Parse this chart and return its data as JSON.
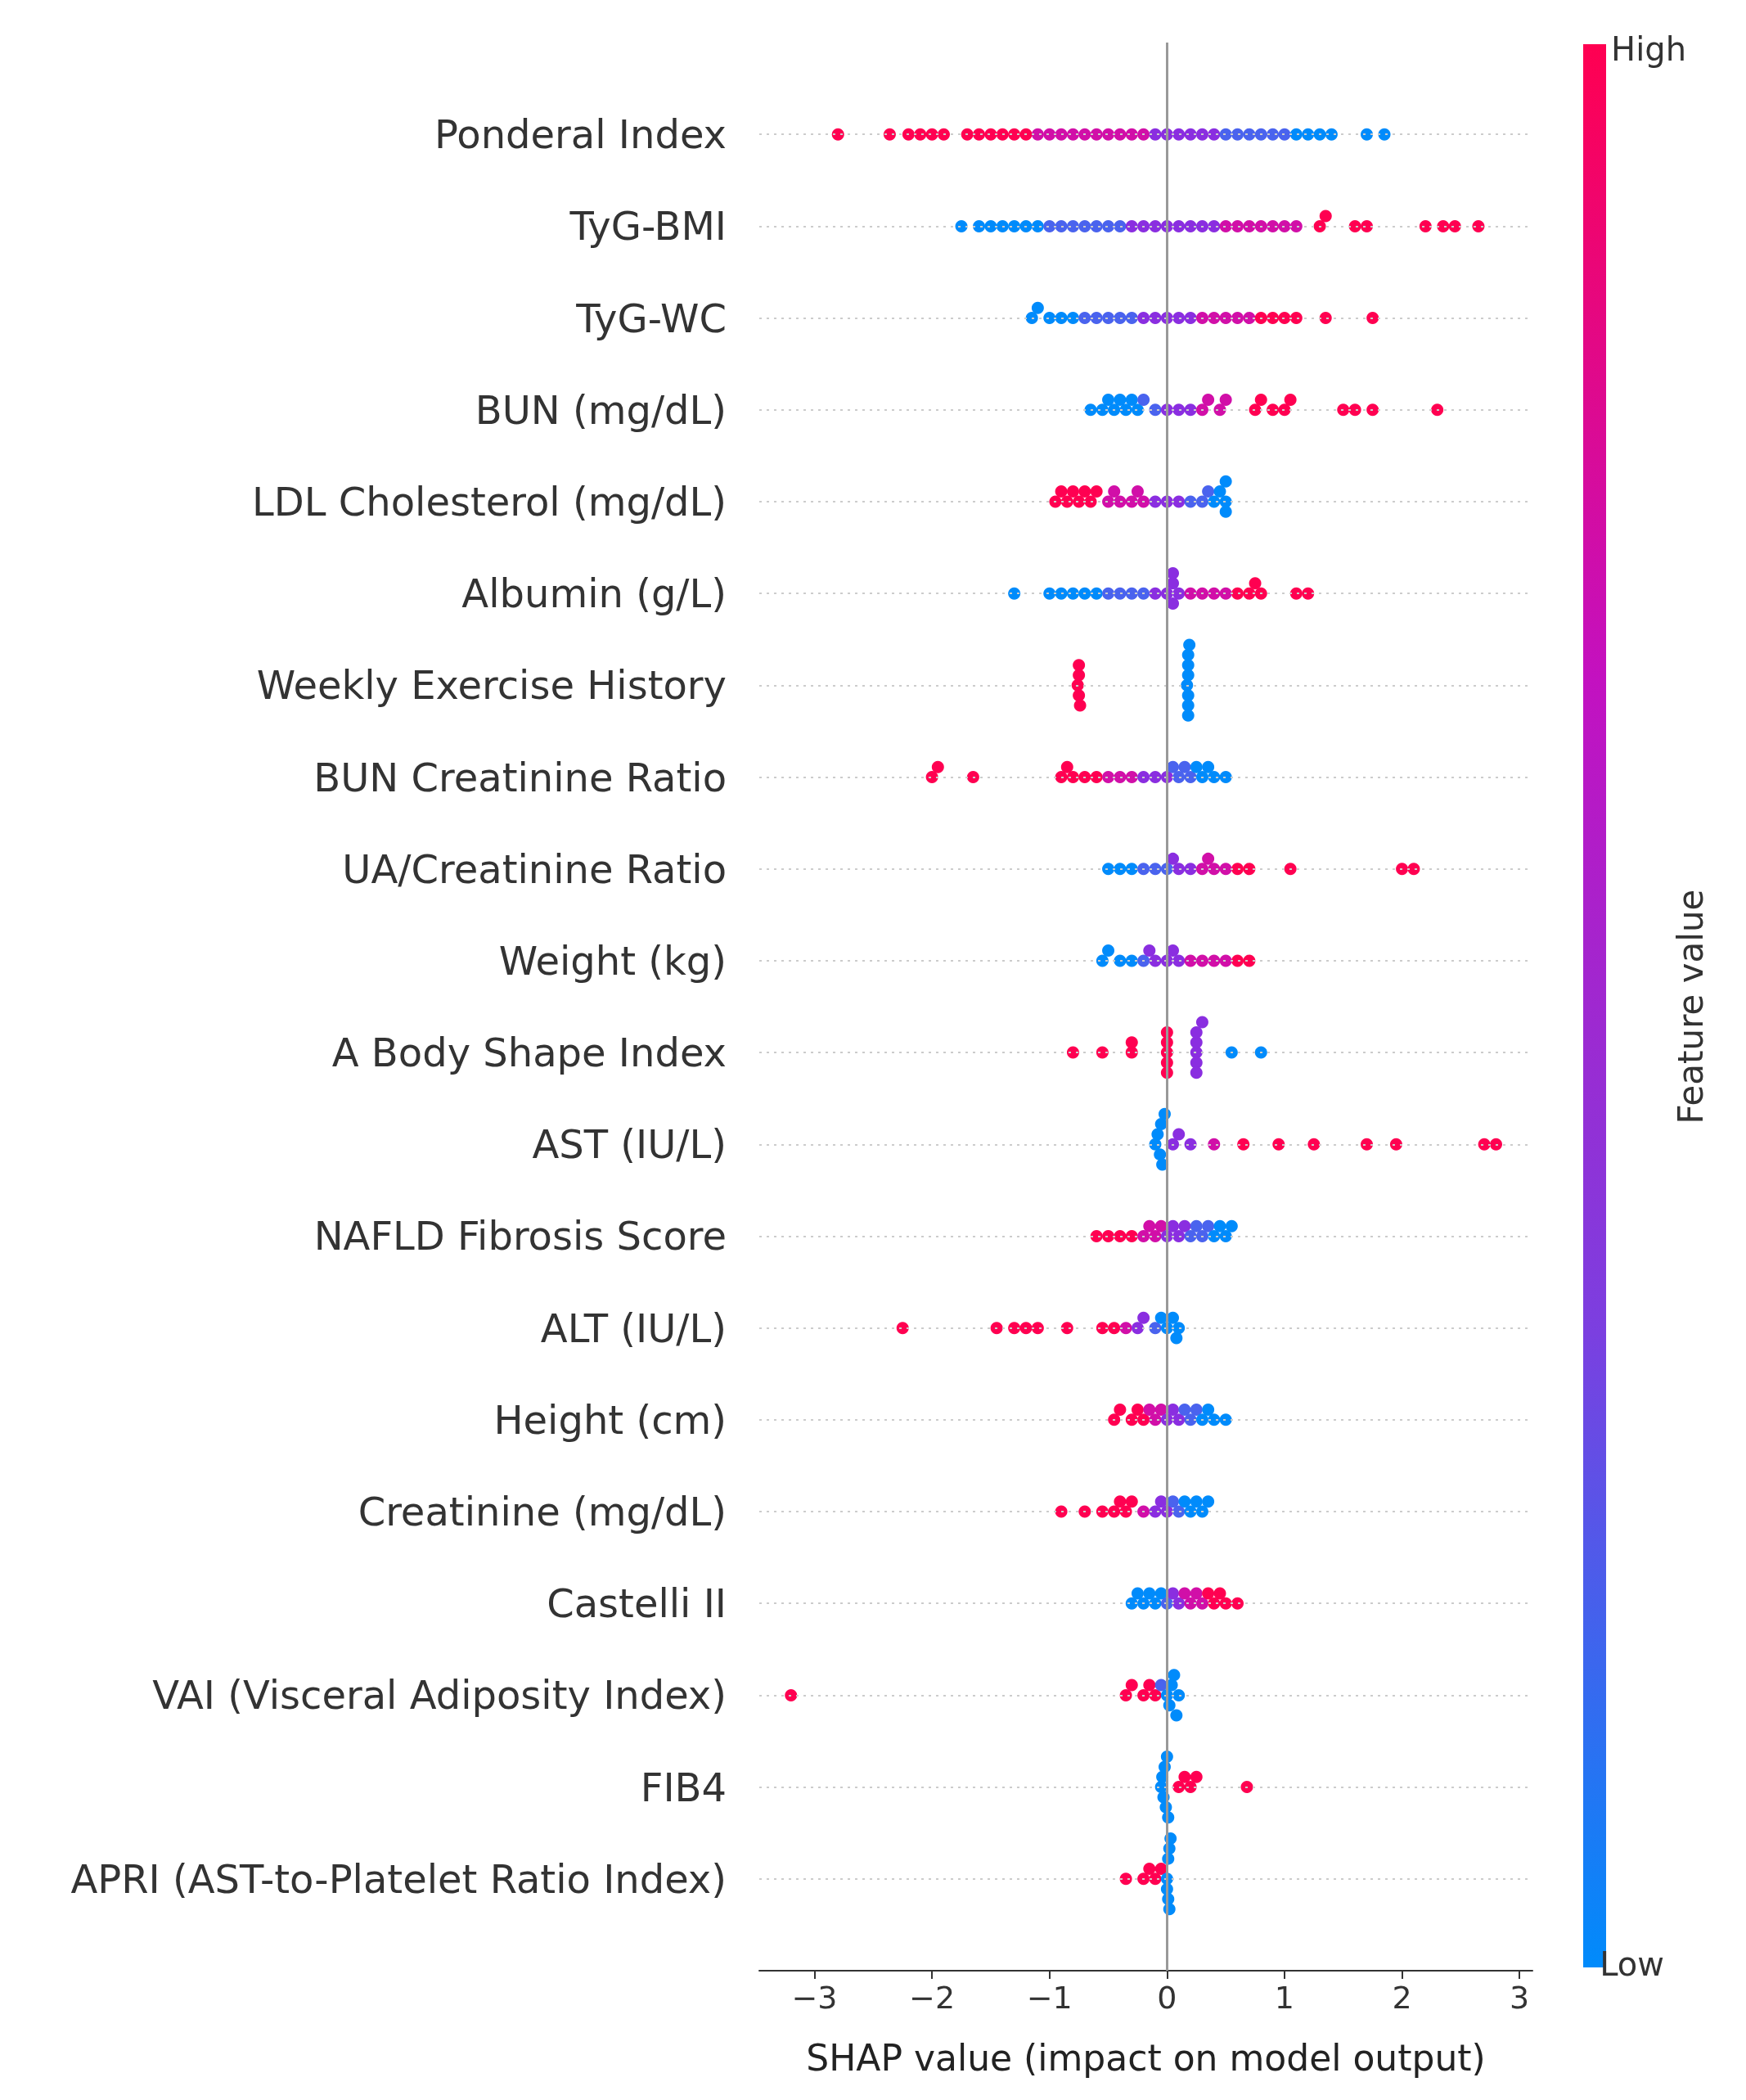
{
  "chart_data": {
    "type": "scatter",
    "orientation": "horizontal",
    "xlabel": "SHAP value (impact on model output)",
    "clabel": "Feature value",
    "annotations": [
      "High",
      "Low"
    ],
    "categories": [
      "Ponderal Index",
      "TyG-BMI",
      "TyG-WC",
      "BUN (mg/dL)",
      "LDL Cholesterol (mg/dL)",
      "Albumin (g/L)",
      "Weekly Exercise History",
      "BUN Creatinine Ratio",
      "UA/Creatinine Ratio",
      "Weight (kg)",
      "A Body Shape Index",
      "AST (IU/L)",
      "NAFLD Fibrosis Score",
      "ALT (IU/L)",
      "Height (cm)",
      "Creatinine (mg/dL)",
      "Castelli II",
      "VAI (Visceral Adiposity Index)",
      "FIB4",
      "APRI (AST-to-Platelet Ratio Index)"
    ],
    "xlim": [
      -3.47,
      3.11
    ],
    "xticks": [
      {
        "value": -3,
        "label": "−3"
      },
      {
        "value": -2,
        "label": "−2"
      },
      {
        "value": -1,
        "label": "−1"
      },
      0,
      1,
      2,
      3
    ],
    "grid": "y",
    "marker": "circle",
    "ref_lines": [
      {
        "axis": "x",
        "value": 0,
        "color": "#999999"
      }
    ],
    "series": [
      {
        "x": [
          "Ponderal Index",
          "Ponderal Index",
          "Ponderal Index",
          "Ponderal Index",
          "Ponderal Index",
          "Ponderal Index",
          "Ponderal Index",
          "Ponderal Index",
          "Ponderal Index",
          "Ponderal Index",
          "Ponderal Index",
          "Ponderal Index",
          "Ponderal Index",
          "Ponderal Index",
          "Ponderal Index",
          "Ponderal Index",
          "Ponderal Index",
          "Ponderal Index",
          "Ponderal Index",
          "Ponderal Index",
          "Ponderal Index",
          "Ponderal Index",
          "Ponderal Index",
          "Ponderal Index",
          "Ponderal Index",
          "Ponderal Index",
          "Ponderal Index",
          "Ponderal Index",
          "Ponderal Index",
          "Ponderal Index",
          "Ponderal Index",
          "Ponderal Index",
          "Ponderal Index",
          "Ponderal Index",
          "Ponderal Index",
          "Ponderal Index",
          "Ponderal Index",
          "Ponderal Index",
          "Ponderal Index",
          "Ponderal Index"
        ],
        "values": [
          -2.8,
          -2.36,
          -2.2,
          -2.1,
          -2.0,
          -1.9,
          -1.7,
          -1.6,
          -1.5,
          -1.4,
          -1.3,
          -1.2,
          -1.1,
          -1.0,
          -0.9,
          -0.8,
          -0.7,
          -0.6,
          -0.5,
          -0.4,
          -0.3,
          -0.2,
          -0.1,
          0,
          0.1,
          0.2,
          0.3,
          0.4,
          0.5,
          0.6,
          0.7,
          0.8,
          0.9,
          1.0,
          1.1,
          1.2,
          1.3,
          1.4,
          1.7,
          1.85
        ],
        "colors": [
          "#ff0051",
          "#ff0051",
          "#ff0051",
          "#ff0051",
          "#ff0051",
          "#ff0051",
          "#ff0051",
          "#ff0051",
          "#ff0051",
          "#ff0051",
          "#ff0051",
          "#ff0051",
          "#d10fa8",
          "#d10fa8",
          "#d10fa8",
          "#d10fa8",
          "#d10fa8",
          "#d10fa8",
          "#d10fa8",
          "#d10fa8",
          "#d10fa8",
          "#d10fa8",
          "#8a2ee0",
          "#8a2ee0",
          "#8a2ee0",
          "#8a2ee0",
          "#8a2ee0",
          "#8a2ee0",
          "#4a63ee",
          "#4a63ee",
          "#4a63ee",
          "#4a63ee",
          "#4a63ee",
          "#4a63ee",
          "#008bfb",
          "#008bfb",
          "#008bfb",
          "#008bfb",
          "#008bfb",
          "#008bfb"
        ]
      },
      {
        "x": [
          "TyG-BMI",
          "TyG-BMI",
          "TyG-BMI",
          "TyG-BMI",
          "TyG-BMI",
          "TyG-BMI",
          "TyG-BMI",
          "TyG-BMI",
          "TyG-BMI",
          "TyG-BMI",
          "TyG-BMI",
          "TyG-BMI",
          "TyG-BMI",
          "TyG-BMI",
          "TyG-BMI",
          "TyG-BMI",
          "TyG-BMI",
          "TyG-BMI",
          "TyG-BMI",
          "TyG-BMI",
          "TyG-BMI",
          "TyG-BMI",
          "TyG-BMI",
          "TyG-BMI",
          "TyG-BMI",
          "TyG-BMI",
          "TyG-BMI",
          "TyG-BMI",
          "TyG-BMI",
          "TyG-BMI",
          "TyG-BMI",
          "TyG-BMI",
          "TyG-BMI",
          "TyG-BMI",
          "TyG-BMI",
          "TyG-BMI",
          "TyG-BMI"
        ],
        "values": [
          -1.75,
          -1.6,
          -1.5,
          -1.4,
          -1.3,
          -1.2,
          -1.1,
          -1.0,
          -0.9,
          -0.8,
          -0.7,
          -0.6,
          -0.5,
          -0.4,
          -0.3,
          -0.2,
          -0.1,
          0,
          0.1,
          0.2,
          0.3,
          0.4,
          0.5,
          0.6,
          0.7,
          0.8,
          0.9,
          1.0,
          1.1,
          1.3,
          1.35,
          1.6,
          1.7,
          2.2,
          2.35,
          2.45,
          2.65
        ],
        "colors": [
          "#008bfb",
          "#008bfb",
          "#008bfb",
          "#008bfb",
          "#008bfb",
          "#008bfb",
          "#008bfb",
          "#4a63ee",
          "#4a63ee",
          "#4a63ee",
          "#4a63ee",
          "#4a63ee",
          "#4a63ee",
          "#4a63ee",
          "#8a2ee0",
          "#8a2ee0",
          "#8a2ee0",
          "#8a2ee0",
          "#8a2ee0",
          "#8a2ee0",
          "#8a2ee0",
          "#8a2ee0",
          "#d10fa8",
          "#d10fa8",
          "#d10fa8",
          "#d10fa8",
          "#d10fa8",
          "#d10fa8",
          "#d10fa8",
          "#ff0051",
          "#ff0051",
          "#ff0051",
          "#ff0051",
          "#ff0051",
          "#ff0051",
          "#ff0051",
          "#ff0051"
        ]
      },
      {
        "x": [
          "TyG-WC",
          "TyG-WC",
          "TyG-WC",
          "TyG-WC",
          "TyG-WC",
          "TyG-WC",
          "TyG-WC",
          "TyG-WC",
          "TyG-WC",
          "TyG-WC",
          "TyG-WC",
          "TyG-WC",
          "TyG-WC",
          "TyG-WC",
          "TyG-WC",
          "TyG-WC",
          "TyG-WC",
          "TyG-WC",
          "TyG-WC",
          "TyG-WC",
          "TyG-WC",
          "TyG-WC",
          "TyG-WC",
          "TyG-WC",
          "TyG-WC",
          "TyG-WC"
        ],
        "values": [
          -1.15,
          -1.1,
          -1.0,
          -0.9,
          -0.8,
          -0.7,
          -0.6,
          -0.5,
          -0.4,
          -0.3,
          -0.2,
          -0.1,
          0,
          0.1,
          0.2,
          0.3,
          0.4,
          0.5,
          0.6,
          0.7,
          0.8,
          0.9,
          1.0,
          1.1,
          1.35,
          1.75
        ],
        "colors": [
          "#008bfb",
          "#008bfb",
          "#008bfb",
          "#008bfb",
          "#008bfb",
          "#4a63ee",
          "#4a63ee",
          "#4a63ee",
          "#4a63ee",
          "#4a63ee",
          "#8a2ee0",
          "#8a2ee0",
          "#8a2ee0",
          "#8a2ee0",
          "#8a2ee0",
          "#d10fa8",
          "#d10fa8",
          "#d10fa8",
          "#d10fa8",
          "#d10fa8",
          "#ff0051",
          "#ff0051",
          "#ff0051",
          "#ff0051",
          "#ff0051",
          "#ff0051"
        ]
      },
      {
        "x": [
          "BUN (mg/dL)",
          "BUN (mg/dL)",
          "BUN (mg/dL)",
          "BUN (mg/dL)",
          "BUN (mg/dL)",
          "BUN (mg/dL)",
          "BUN (mg/dL)",
          "BUN (mg/dL)",
          "BUN (mg/dL)",
          "BUN (mg/dL)",
          "BUN (mg/dL)",
          "BUN (mg/dL)",
          "BUN (mg/dL)",
          "BUN (mg/dL)",
          "BUN (mg/dL)",
          "BUN (mg/dL)",
          "BUN (mg/dL)",
          "BUN (mg/dL)",
          "BUN (mg/dL)",
          "BUN (mg/dL)",
          "BUN (mg/dL)",
          "BUN (mg/dL)",
          "BUN (mg/dL)",
          "BUN (mg/dL)",
          "BUN (mg/dL)",
          "BUN (mg/dL)"
        ],
        "values": [
          -0.65,
          -0.55,
          -0.5,
          -0.45,
          -0.4,
          -0.35,
          -0.3,
          -0.25,
          -0.2,
          -0.1,
          0,
          0.1,
          0.2,
          0.3,
          0.35,
          0.45,
          0.5,
          0.75,
          0.8,
          0.9,
          1.0,
          1.05,
          1.5,
          1.6,
          1.75,
          2.3
        ],
        "colors": [
          "#008bfb",
          "#008bfb",
          "#008bfb",
          "#008bfb",
          "#008bfb",
          "#008bfb",
          "#008bfb",
          "#008bfb",
          "#4a63ee",
          "#4a63ee",
          "#8a2ee0",
          "#8a2ee0",
          "#8a2ee0",
          "#d10fa8",
          "#d10fa8",
          "#d10fa8",
          "#d10fa8",
          "#ff0051",
          "#ff0051",
          "#ff0051",
          "#ff0051",
          "#ff0051",
          "#ff0051",
          "#ff0051",
          "#ff0051",
          "#ff0051"
        ]
      },
      {
        "x": [
          "LDL Cholesterol (mg/dL)",
          "LDL Cholesterol (mg/dL)",
          "LDL Cholesterol (mg/dL)",
          "LDL Cholesterol (mg/dL)",
          "LDL Cholesterol (mg/dL)",
          "LDL Cholesterol (mg/dL)",
          "LDL Cholesterol (mg/dL)",
          "LDL Cholesterol (mg/dL)",
          "LDL Cholesterol (mg/dL)",
          "LDL Cholesterol (mg/dL)",
          "LDL Cholesterol (mg/dL)",
          "LDL Cholesterol (mg/dL)",
          "LDL Cholesterol (mg/dL)",
          "LDL Cholesterol (mg/dL)",
          "LDL Cholesterol (mg/dL)",
          "LDL Cholesterol (mg/dL)",
          "LDL Cholesterol (mg/dL)",
          "LDL Cholesterol (mg/dL)",
          "LDL Cholesterol (mg/dL)",
          "LDL Cholesterol (mg/dL)",
          "LDL Cholesterol (mg/dL)",
          "LDL Cholesterol (mg/dL)",
          "LDL Cholesterol (mg/dL)",
          "LDL Cholesterol (mg/dL)",
          "LDL Cholesterol (mg/dL)"
        ],
        "values": [
          -0.95,
          -0.9,
          -0.85,
          -0.8,
          -0.75,
          -0.7,
          -0.65,
          -0.6,
          -0.5,
          -0.45,
          -0.4,
          -0.3,
          -0.25,
          -0.2,
          -0.1,
          0,
          0.1,
          0.2,
          0.3,
          0.35,
          0.4,
          0.45,
          0.5,
          0.5,
          0.5
        ],
        "colors": [
          "#ff0051",
          "#ff0051",
          "#ff0051",
          "#ff0051",
          "#ff0051",
          "#ff0051",
          "#ff0051",
          "#ff0051",
          "#d10fa8",
          "#d10fa8",
          "#d10fa8",
          "#d10fa8",
          "#d10fa8",
          "#d10fa8",
          "#8a2ee0",
          "#8a2ee0",
          "#8a2ee0",
          "#4a63ee",
          "#4a63ee",
          "#4a63ee",
          "#008bfb",
          "#008bfb",
          "#008bfb",
          "#008bfb",
          "#008bfb"
        ]
      },
      {
        "x": [
          "Albumin (g/L)",
          "Albumin (g/L)",
          "Albumin (g/L)",
          "Albumin (g/L)",
          "Albumin (g/L)",
          "Albumin (g/L)",
          "Albumin (g/L)",
          "Albumin (g/L)",
          "Albumin (g/L)",
          "Albumin (g/L)",
          "Albumin (g/L)",
          "Albumin (g/L)",
          "Albumin (g/L)",
          "Albumin (g/L)",
          "Albumin (g/L)",
          "Albumin (g/L)",
          "Albumin (g/L)",
          "Albumin (g/L)",
          "Albumin (g/L)",
          "Albumin (g/L)",
          "Albumin (g/L)",
          "Albumin (g/L)",
          "Albumin (g/L)",
          "Albumin (g/L)",
          "Albumin (g/L)",
          "Albumin (g/L)"
        ],
        "values": [
          -1.3,
          -1.0,
          -0.9,
          -0.8,
          -0.7,
          -0.6,
          -0.5,
          -0.4,
          -0.3,
          -0.2,
          -0.1,
          0,
          0.05,
          0.05,
          0.05,
          0.1,
          0.2,
          0.3,
          0.4,
          0.5,
          0.6,
          0.7,
          0.75,
          0.8,
          1.1,
          1.2
        ],
        "colors": [
          "#008bfb",
          "#008bfb",
          "#008bfb",
          "#008bfb",
          "#008bfb",
          "#008bfb",
          "#4a63ee",
          "#4a63ee",
          "#4a63ee",
          "#4a63ee",
          "#8a2ee0",
          "#8a2ee0",
          "#8a2ee0",
          "#8a2ee0",
          "#8a2ee0",
          "#8a2ee0",
          "#d10fa8",
          "#d10fa8",
          "#d10fa8",
          "#d10fa8",
          "#ff0051",
          "#ff0051",
          "#ff0051",
          "#ff0051",
          "#ff0051",
          "#ff0051"
        ]
      },
      {
        "x": [
          "Weekly Exercise History",
          "Weekly Exercise History",
          "Weekly Exercise History",
          "Weekly Exercise History",
          "Weekly Exercise History",
          "Weekly Exercise History",
          "Weekly Exercise History",
          "Weekly Exercise History",
          "Weekly Exercise History",
          "Weekly Exercise History",
          "Weekly Exercise History",
          "Weekly Exercise History",
          "Weekly Exercise History"
        ],
        "values": [
          -0.76,
          -0.75,
          -0.75,
          -0.75,
          -0.74,
          0.17,
          0.18,
          0.18,
          0.18,
          0.18,
          0.18,
          0.18,
          0.19
        ],
        "colors": [
          "#ff0051",
          "#ff0051",
          "#ff0051",
          "#ff0051",
          "#ff0051",
          "#008bfb",
          "#008bfb",
          "#008bfb",
          "#008bfb",
          "#008bfb",
          "#008bfb",
          "#008bfb",
          "#008bfb"
        ]
      },
      {
        "x": [
          "BUN Creatinine Ratio",
          "BUN Creatinine Ratio",
          "BUN Creatinine Ratio",
          "BUN Creatinine Ratio",
          "BUN Creatinine Ratio",
          "BUN Creatinine Ratio",
          "BUN Creatinine Ratio",
          "BUN Creatinine Ratio",
          "BUN Creatinine Ratio",
          "BUN Creatinine Ratio",
          "BUN Creatinine Ratio",
          "BUN Creatinine Ratio",
          "BUN Creatinine Ratio",
          "BUN Creatinine Ratio",
          "BUN Creatinine Ratio",
          "BUN Creatinine Ratio",
          "BUN Creatinine Ratio",
          "BUN Creatinine Ratio",
          "BUN Creatinine Ratio",
          "BUN Creatinine Ratio",
          "BUN Creatinine Ratio",
          "BUN Creatinine Ratio",
          "BUN Creatinine Ratio"
        ],
        "values": [
          -2.0,
          -1.95,
          -1.65,
          -0.9,
          -0.85,
          -0.8,
          -0.7,
          -0.6,
          -0.5,
          -0.4,
          -0.3,
          -0.2,
          -0.1,
          0,
          0.05,
          0.1,
          0.15,
          0.2,
          0.25,
          0.3,
          0.35,
          0.4,
          0.5
        ],
        "colors": [
          "#ff0051",
          "#ff0051",
          "#ff0051",
          "#ff0051",
          "#ff0051",
          "#ff0051",
          "#ff0051",
          "#ff0051",
          "#d10fa8",
          "#d10fa8",
          "#d10fa8",
          "#8a2ee0",
          "#8a2ee0",
          "#8a2ee0",
          "#4a63ee",
          "#4a63ee",
          "#4a63ee",
          "#4a63ee",
          "#008bfb",
          "#008bfb",
          "#008bfb",
          "#008bfb",
          "#008bfb"
        ]
      },
      {
        "x": [
          "UA/Creatinine Ratio",
          "UA/Creatinine Ratio",
          "UA/Creatinine Ratio",
          "UA/Creatinine Ratio",
          "UA/Creatinine Ratio",
          "UA/Creatinine Ratio",
          "UA/Creatinine Ratio",
          "UA/Creatinine Ratio",
          "UA/Creatinine Ratio",
          "UA/Creatinine Ratio",
          "UA/Creatinine Ratio",
          "UA/Creatinine Ratio",
          "UA/Creatinine Ratio",
          "UA/Creatinine Ratio",
          "UA/Creatinine Ratio",
          "UA/Creatinine Ratio",
          "UA/Creatinine Ratio",
          "UA/Creatinine Ratio"
        ],
        "values": [
          -0.5,
          -0.4,
          -0.3,
          -0.2,
          -0.1,
          0,
          0.05,
          0.1,
          0.2,
          0.3,
          0.35,
          0.4,
          0.5,
          0.6,
          0.7,
          1.05,
          2.0,
          2.1
        ],
        "colors": [
          "#008bfb",
          "#008bfb",
          "#008bfb",
          "#4a63ee",
          "#4a63ee",
          "#4a63ee",
          "#8a2ee0",
          "#8a2ee0",
          "#8a2ee0",
          "#d10fa8",
          "#d10fa8",
          "#d10fa8",
          "#d10fa8",
          "#ff0051",
          "#ff0051",
          "#ff0051",
          "#ff0051",
          "#ff0051"
        ]
      },
      {
        "x": [
          "Weight (kg)",
          "Weight (kg)",
          "Weight (kg)",
          "Weight (kg)",
          "Weight (kg)",
          "Weight (kg)",
          "Weight (kg)",
          "Weight (kg)",
          "Weight (kg)",
          "Weight (kg)",
          "Weight (kg)",
          "Weight (kg)",
          "Weight (kg)",
          "Weight (kg)",
          "Weight (kg)",
          "Weight (kg)"
        ],
        "values": [
          -0.55,
          -0.5,
          -0.4,
          -0.3,
          -0.2,
          -0.15,
          -0.1,
          0,
          0.05,
          0.1,
          0.2,
          0.3,
          0.4,
          0.5,
          0.6,
          0.7
        ],
        "colors": [
          "#008bfb",
          "#008bfb",
          "#008bfb",
          "#008bfb",
          "#4a63ee",
          "#8a2ee0",
          "#8a2ee0",
          "#8a2ee0",
          "#8a2ee0",
          "#8a2ee0",
          "#d10fa8",
          "#d10fa8",
          "#d10fa8",
          "#d10fa8",
          "#ff0051",
          "#ff0051"
        ]
      },
      {
        "x": [
          "A Body Shape Index",
          "A Body Shape Index",
          "A Body Shape Index",
          "A Body Shape Index",
          "A Body Shape Index",
          "A Body Shape Index",
          "A Body Shape Index",
          "A Body Shape Index",
          "A Body Shape Index",
          "A Body Shape Index",
          "A Body Shape Index",
          "A Body Shape Index",
          "A Body Shape Index",
          "A Body Shape Index",
          "A Body Shape Index",
          "A Body Shape Index",
          "A Body Shape Index"
        ],
        "values": [
          -0.8,
          -0.55,
          -0.3,
          -0.3,
          0,
          0,
          0,
          0,
          0,
          0.25,
          0.25,
          0.25,
          0.25,
          0.25,
          0.3,
          0.55,
          0.8
        ],
        "colors": [
          "#ff0051",
          "#ff0051",
          "#ff0051",
          "#ff0051",
          "#ff0051",
          "#ff0051",
          "#ff0051",
          "#ff0051",
          "#ff0051",
          "#8a2ee0",
          "#8a2ee0",
          "#8a2ee0",
          "#8a2ee0",
          "#8a2ee0",
          "#8a2ee0",
          "#008bfb",
          "#008bfb"
        ]
      },
      {
        "x": [
          "AST (IU/L)",
          "AST (IU/L)",
          "AST (IU/L)",
          "AST (IU/L)",
          "AST (IU/L)",
          "AST (IU/L)",
          "AST (IU/L)",
          "AST (IU/L)",
          "AST (IU/L)",
          "AST (IU/L)",
          "AST (IU/L)",
          "AST (IU/L)",
          "AST (IU/L)",
          "AST (IU/L)",
          "AST (IU/L)",
          "AST (IU/L)",
          "AST (IU/L)"
        ],
        "values": [
          -0.1,
          -0.08,
          -0.06,
          -0.05,
          -0.04,
          -0.02,
          0.05,
          0.1,
          0.2,
          0.4,
          0.65,
          0.95,
          1.25,
          1.7,
          1.95,
          2.7,
          2.8
        ],
        "colors": [
          "#008bfb",
          "#008bfb",
          "#008bfb",
          "#008bfb",
          "#008bfb",
          "#008bfb",
          "#8a2ee0",
          "#8a2ee0",
          "#8a2ee0",
          "#d10fa8",
          "#ff0051",
          "#ff0051",
          "#ff0051",
          "#ff0051",
          "#ff0051",
          "#ff0051",
          "#ff0051"
        ]
      },
      {
        "x": [
          "NAFLD Fibrosis Score",
          "NAFLD Fibrosis Score",
          "NAFLD Fibrosis Score",
          "NAFLD Fibrosis Score",
          "NAFLD Fibrosis Score",
          "NAFLD Fibrosis Score",
          "NAFLD Fibrosis Score",
          "NAFLD Fibrosis Score",
          "NAFLD Fibrosis Score",
          "NAFLD Fibrosis Score",
          "NAFLD Fibrosis Score",
          "NAFLD Fibrosis Score",
          "NAFLD Fibrosis Score",
          "NAFLD Fibrosis Score",
          "NAFLD Fibrosis Score",
          "NAFLD Fibrosis Score",
          "NAFLD Fibrosis Score",
          "NAFLD Fibrosis Score",
          "NAFLD Fibrosis Score",
          "NAFLD Fibrosis Score"
        ],
        "values": [
          -0.6,
          -0.5,
          -0.4,
          -0.3,
          -0.2,
          -0.15,
          -0.1,
          -0.05,
          0,
          0.05,
          0.1,
          0.15,
          0.2,
          0.25,
          0.3,
          0.35,
          0.4,
          0.45,
          0.5,
          0.55
        ],
        "colors": [
          "#ff0051",
          "#ff0051",
          "#ff0051",
          "#ff0051",
          "#d10fa8",
          "#d10fa8",
          "#d10fa8",
          "#d10fa8",
          "#8a2ee0",
          "#8a2ee0",
          "#8a2ee0",
          "#8a2ee0",
          "#4a63ee",
          "#4a63ee",
          "#4a63ee",
          "#4a63ee",
          "#008bfb",
          "#008bfb",
          "#008bfb",
          "#008bfb"
        ]
      },
      {
        "x": [
          "ALT (IU/L)",
          "ALT (IU/L)",
          "ALT (IU/L)",
          "ALT (IU/L)",
          "ALT (IU/L)",
          "ALT (IU/L)",
          "ALT (IU/L)",
          "ALT (IU/L)",
          "ALT (IU/L)",
          "ALT (IU/L)",
          "ALT (IU/L)",
          "ALT (IU/L)",
          "ALT (IU/L)",
          "ALT (IU/L)",
          "ALT (IU/L)",
          "ALT (IU/L)",
          "ALT (IU/L)"
        ],
        "values": [
          -2.25,
          -1.45,
          -1.3,
          -1.2,
          -1.1,
          -0.85,
          -0.55,
          -0.45,
          -0.35,
          -0.25,
          -0.2,
          -0.1,
          -0.05,
          0,
          0.05,
          0.08,
          0.1
        ],
        "colors": [
          "#ff0051",
          "#ff0051",
          "#ff0051",
          "#ff0051",
          "#ff0051",
          "#ff0051",
          "#ff0051",
          "#ff0051",
          "#d10fa8",
          "#8a2ee0",
          "#8a2ee0",
          "#4a63ee",
          "#008bfb",
          "#008bfb",
          "#008bfb",
          "#008bfb",
          "#008bfb"
        ]
      },
      {
        "x": [
          "Height (cm)",
          "Height (cm)",
          "Height (cm)",
          "Height (cm)",
          "Height (cm)",
          "Height (cm)",
          "Height (cm)",
          "Height (cm)",
          "Height (cm)",
          "Height (cm)",
          "Height (cm)",
          "Height (cm)",
          "Height (cm)",
          "Height (cm)",
          "Height (cm)",
          "Height (cm)",
          "Height (cm)",
          "Height (cm)"
        ],
        "values": [
          -0.45,
          -0.4,
          -0.3,
          -0.25,
          -0.2,
          -0.15,
          -0.1,
          -0.05,
          0,
          0.05,
          0.1,
          0.15,
          0.2,
          0.25,
          0.3,
          0.35,
          0.4,
          0.5
        ],
        "colors": [
          "#ff0051",
          "#ff0051",
          "#ff0051",
          "#ff0051",
          "#ff0051",
          "#d10fa8",
          "#d10fa8",
          "#d10fa8",
          "#8a2ee0",
          "#8a2ee0",
          "#8a2ee0",
          "#4a63ee",
          "#4a63ee",
          "#4a63ee",
          "#008bfb",
          "#008bfb",
          "#008bfb",
          "#008bfb"
        ]
      },
      {
        "x": [
          "Creatinine (mg/dL)",
          "Creatinine (mg/dL)",
          "Creatinine (mg/dL)",
          "Creatinine (mg/dL)",
          "Creatinine (mg/dL)",
          "Creatinine (mg/dL)",
          "Creatinine (mg/dL)",
          "Creatinine (mg/dL)",
          "Creatinine (mg/dL)",
          "Creatinine (mg/dL)",
          "Creatinine (mg/dL)",
          "Creatinine (mg/dL)",
          "Creatinine (mg/dL)",
          "Creatinine (mg/dL)",
          "Creatinine (mg/dL)",
          "Creatinine (mg/dL)",
          "Creatinine (mg/dL)",
          "Creatinine (mg/dL)"
        ],
        "values": [
          -0.9,
          -0.7,
          -0.55,
          -0.45,
          -0.4,
          -0.35,
          -0.3,
          -0.2,
          -0.1,
          -0.05,
          0,
          0.05,
          0.1,
          0.15,
          0.2,
          0.25,
          0.3,
          0.35
        ],
        "colors": [
          "#ff0051",
          "#ff0051",
          "#ff0051",
          "#ff0051",
          "#ff0051",
          "#ff0051",
          "#ff0051",
          "#d10fa8",
          "#8a2ee0",
          "#8a2ee0",
          "#8a2ee0",
          "#4a63ee",
          "#4a63ee",
          "#008bfb",
          "#008bfb",
          "#008bfb",
          "#008bfb",
          "#008bfb"
        ]
      },
      {
        "x": [
          "Castelli II",
          "Castelli II",
          "Castelli II",
          "Castelli II",
          "Castelli II",
          "Castelli II",
          "Castelli II",
          "Castelli II",
          "Castelli II",
          "Castelli II",
          "Castelli II",
          "Castelli II",
          "Castelli II",
          "Castelli II",
          "Castelli II",
          "Castelli II",
          "Castelli II",
          "Castelli II"
        ],
        "values": [
          -0.3,
          -0.25,
          -0.2,
          -0.15,
          -0.1,
          -0.05,
          0,
          0.05,
          0.1,
          0.15,
          0.2,
          0.25,
          0.3,
          0.35,
          0.4,
          0.45,
          0.5,
          0.6
        ],
        "colors": [
          "#008bfb",
          "#008bfb",
          "#008bfb",
          "#008bfb",
          "#008bfb",
          "#008bfb",
          "#4a63ee",
          "#8a2ee0",
          "#8a2ee0",
          "#d10fa8",
          "#d10fa8",
          "#d10fa8",
          "#d10fa8",
          "#ff0051",
          "#ff0051",
          "#ff0051",
          "#ff0051",
          "#ff0051"
        ]
      },
      {
        "x": [
          "VAI (Visceral Adiposity Index)",
          "VAI (Visceral Adiposity Index)",
          "VAI (Visceral Adiposity Index)",
          "VAI (Visceral Adiposity Index)",
          "VAI (Visceral Adiposity Index)",
          "VAI (Visceral Adiposity Index)",
          "VAI (Visceral Adiposity Index)",
          "VAI (Visceral Adiposity Index)",
          "VAI (Visceral Adiposity Index)",
          "VAI (Visceral Adiposity Index)",
          "VAI (Visceral Adiposity Index)",
          "VAI (Visceral Adiposity Index)",
          "VAI (Visceral Adiposity Index)"
        ],
        "values": [
          -3.2,
          -0.35,
          -0.3,
          -0.2,
          -0.15,
          -0.1,
          -0.05,
          0,
          0.02,
          0.04,
          0.06,
          0.08,
          0.1
        ],
        "colors": [
          "#ff0051",
          "#ff0051",
          "#ff0051",
          "#ff0051",
          "#ff0051",
          "#ff0051",
          "#4a63ee",
          "#008bfb",
          "#008bfb",
          "#008bfb",
          "#008bfb",
          "#008bfb",
          "#008bfb"
        ]
      },
      {
        "x": [
          "FIB4",
          "FIB4",
          "FIB4",
          "FIB4",
          "FIB4",
          "FIB4",
          "FIB4",
          "FIB4",
          "FIB4",
          "FIB4",
          "FIB4",
          "FIB4"
        ],
        "values": [
          -0.05,
          -0.04,
          -0.03,
          -0.02,
          -0.01,
          0,
          0.01,
          0.1,
          0.15,
          0.2,
          0.25,
          0.68
        ],
        "colors": [
          "#008bfb",
          "#008bfb",
          "#008bfb",
          "#008bfb",
          "#008bfb",
          "#008bfb",
          "#008bfb",
          "#ff0051",
          "#ff0051",
          "#ff0051",
          "#ff0051",
          "#ff0051"
        ]
      },
      {
        "x": [
          "APRI (AST-to-Platelet Ratio Index)",
          "APRI (AST-to-Platelet Ratio Index)",
          "APRI (AST-to-Platelet Ratio Index)",
          "APRI (AST-to-Platelet Ratio Index)",
          "APRI (AST-to-Platelet Ratio Index)",
          "APRI (AST-to-Platelet Ratio Index)",
          "APRI (AST-to-Platelet Ratio Index)",
          "APRI (AST-to-Platelet Ratio Index)",
          "APRI (AST-to-Platelet Ratio Index)",
          "APRI (AST-to-Platelet Ratio Index)",
          "APRI (AST-to-Platelet Ratio Index)",
          "APRI (AST-to-Platelet Ratio Index)"
        ],
        "values": [
          -0.35,
          -0.2,
          -0.15,
          -0.1,
          -0.05,
          0,
          0,
          0.01,
          0.01,
          0.02,
          0.02,
          0.03
        ],
        "colors": [
          "#ff0051",
          "#ff0051",
          "#ff0051",
          "#ff0051",
          "#ff0051",
          "#008bfb",
          "#008bfb",
          "#008bfb",
          "#008bfb",
          "#008bfb",
          "#008bfb",
          "#008bfb"
        ]
      }
    ]
  }
}
